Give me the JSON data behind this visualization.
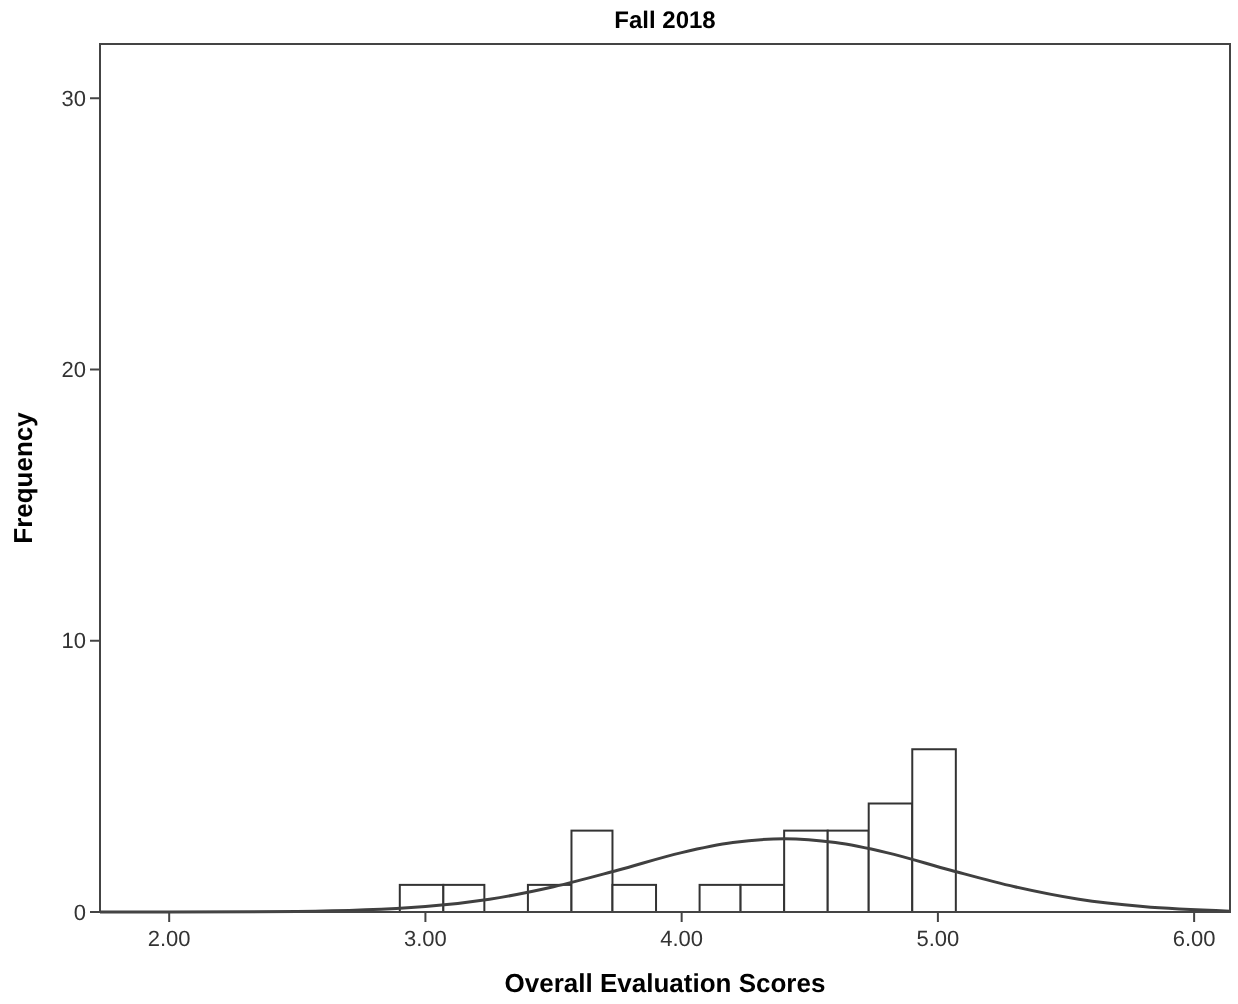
{
  "chart_data": {
    "type": "histogram",
    "title": "Fall 2018",
    "xlabel": "Overall Evaluation Scores",
    "ylabel": "Frequency",
    "xlim": [
      1.73,
      6.14
    ],
    "ylim": [
      0,
      32
    ],
    "xticks": [
      {
        "value": 2,
        "label": "2.00"
      },
      {
        "value": 3,
        "label": "3.00"
      },
      {
        "value": 4,
        "label": "4.00"
      },
      {
        "value": 5,
        "label": "5.00"
      },
      {
        "value": 6,
        "label": "6.00"
      }
    ],
    "yticks": [
      0,
      10,
      20,
      30
    ],
    "series": [
      {
        "color": "#ffffff",
        "bins": [
          2.9,
          3.07,
          3.23,
          3.4,
          3.57,
          3.73,
          3.9,
          4.07,
          4.23,
          4.4,
          4.57,
          4.73,
          4.9,
          5.07
        ],
        "values": [
          1,
          1,
          0,
          1,
          3,
          1,
          0,
          1,
          1,
          3,
          3,
          4,
          6
        ]
      },
      {
        "type": "line",
        "color": "#404040",
        "x": [
          1.73,
          2.0,
          2.5,
          3.0,
          3.25,
          3.5,
          3.75,
          4.0,
          4.2,
          4.4,
          4.6,
          4.8,
          5.05,
          5.3,
          5.55,
          5.8,
          6.14
        ],
        "values": [
          0,
          0,
          0.02,
          0.2,
          0.47,
          0.93,
          1.54,
          2.19,
          2.56,
          2.7,
          2.56,
          2.19,
          1.54,
          0.93,
          0.47,
          0.2,
          0.03
        ]
      }
    ]
  }
}
